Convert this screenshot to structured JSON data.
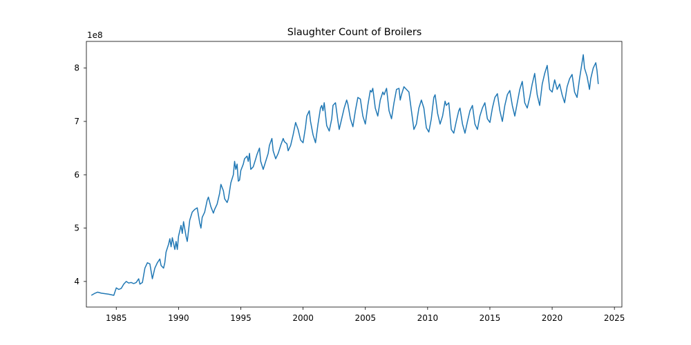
{
  "chart_data": {
    "type": "line",
    "title": "Slaughter Count of Broilers",
    "xlabel": "",
    "ylabel": "",
    "y_offset_label": "1e8",
    "y_scale_factor": 100000000,
    "xlim": [
      1982.6,
      2025.6
    ],
    "ylim": [
      3.52,
      8.5
    ],
    "x_ticks": [
      1985,
      1990,
      1995,
      2000,
      2005,
      2010,
      2015,
      2020,
      2025
    ],
    "y_ticks": [
      4,
      5,
      6,
      7,
      8
    ],
    "grid": false,
    "legend": "none",
    "line_color": "#1f77b4",
    "series": [
      {
        "values": [
          [
            1983.0,
            3.74
          ],
          [
            1983.3,
            3.78
          ],
          [
            1983.5,
            3.8
          ],
          [
            1983.8,
            3.78
          ],
          [
            1984.4,
            3.76
          ],
          [
            1984.8,
            3.74
          ],
          [
            1985.0,
            3.88
          ],
          [
            1985.2,
            3.85
          ],
          [
            1985.4,
            3.87
          ],
          [
            1985.6,
            3.95
          ],
          [
            1985.8,
            4.0
          ],
          [
            1986.0,
            3.97
          ],
          [
            1986.2,
            3.98
          ],
          [
            1986.4,
            3.96
          ],
          [
            1986.6,
            3.98
          ],
          [
            1986.8,
            4.05
          ],
          [
            1986.9,
            3.95
          ],
          [
            1987.1,
            3.98
          ],
          [
            1987.3,
            4.25
          ],
          [
            1987.5,
            4.35
          ],
          [
            1987.7,
            4.33
          ],
          [
            1987.9,
            4.05
          ],
          [
            1988.1,
            4.25
          ],
          [
            1988.3,
            4.35
          ],
          [
            1988.5,
            4.42
          ],
          [
            1988.6,
            4.3
          ],
          [
            1988.8,
            4.25
          ],
          [
            1988.9,
            4.35
          ],
          [
            1989.0,
            4.55
          ],
          [
            1989.2,
            4.7
          ],
          [
            1989.3,
            4.8
          ],
          [
            1989.4,
            4.65
          ],
          [
            1989.5,
            4.82
          ],
          [
            1989.7,
            4.6
          ],
          [
            1989.8,
            4.75
          ],
          [
            1989.9,
            4.6
          ],
          [
            1990.0,
            4.85
          ],
          [
            1990.2,
            5.05
          ],
          [
            1990.3,
            4.9
          ],
          [
            1990.4,
            5.12
          ],
          [
            1990.6,
            4.85
          ],
          [
            1990.7,
            4.75
          ],
          [
            1990.9,
            5.15
          ],
          [
            1991.1,
            5.3
          ],
          [
            1991.3,
            5.35
          ],
          [
            1991.5,
            5.38
          ],
          [
            1991.7,
            5.1
          ],
          [
            1991.8,
            5.0
          ],
          [
            1991.9,
            5.2
          ],
          [
            1992.1,
            5.3
          ],
          [
            1992.3,
            5.52
          ],
          [
            1992.4,
            5.58
          ],
          [
            1992.6,
            5.4
          ],
          [
            1992.8,
            5.28
          ],
          [
            1992.9,
            5.35
          ],
          [
            1993.1,
            5.45
          ],
          [
            1993.3,
            5.65
          ],
          [
            1993.4,
            5.82
          ],
          [
            1993.6,
            5.7
          ],
          [
            1993.7,
            5.55
          ],
          [
            1993.9,
            5.48
          ],
          [
            1994.0,
            5.55
          ],
          [
            1994.2,
            5.85
          ],
          [
            1994.4,
            6.0
          ],
          [
            1994.5,
            6.25
          ],
          [
            1994.6,
            6.1
          ],
          [
            1994.7,
            6.2
          ],
          [
            1994.8,
            5.88
          ],
          [
            1994.9,
            5.9
          ],
          [
            1995.0,
            6.08
          ],
          [
            1995.2,
            6.2
          ],
          [
            1995.3,
            6.3
          ],
          [
            1995.5,
            6.35
          ],
          [
            1995.6,
            6.25
          ],
          [
            1995.7,
            6.4
          ],
          [
            1995.8,
            6.1
          ],
          [
            1996.0,
            6.15
          ],
          [
            1996.2,
            6.3
          ],
          [
            1996.3,
            6.38
          ],
          [
            1996.5,
            6.5
          ],
          [
            1996.6,
            6.25
          ],
          [
            1996.8,
            6.1
          ],
          [
            1997.0,
            6.25
          ],
          [
            1997.2,
            6.4
          ],
          [
            1997.3,
            6.55
          ],
          [
            1997.5,
            6.68
          ],
          [
            1997.6,
            6.45
          ],
          [
            1997.8,
            6.3
          ],
          [
            1998.0,
            6.4
          ],
          [
            1998.2,
            6.55
          ],
          [
            1998.4,
            6.68
          ],
          [
            1998.5,
            6.62
          ],
          [
            1998.7,
            6.58
          ],
          [
            1998.8,
            6.45
          ],
          [
            1999.0,
            6.55
          ],
          [
            1999.2,
            6.75
          ],
          [
            1999.4,
            6.98
          ],
          [
            1999.6,
            6.85
          ],
          [
            1999.8,
            6.65
          ],
          [
            2000.0,
            6.6
          ],
          [
            2000.2,
            6.9
          ],
          [
            2000.3,
            7.1
          ],
          [
            2000.5,
            7.2
          ],
          [
            2000.6,
            7.0
          ],
          [
            2000.8,
            6.75
          ],
          [
            2001.0,
            6.6
          ],
          [
            2001.2,
            6.95
          ],
          [
            2001.4,
            7.25
          ],
          [
            2001.5,
            7.3
          ],
          [
            2001.6,
            7.2
          ],
          [
            2001.7,
            7.35
          ],
          [
            2001.9,
            6.92
          ],
          [
            2002.1,
            6.82
          ],
          [
            2002.3,
            7.05
          ],
          [
            2002.4,
            7.3
          ],
          [
            2002.6,
            7.35
          ],
          [
            2002.8,
            7.0
          ],
          [
            2002.9,
            6.85
          ],
          [
            2003.1,
            7.05
          ],
          [
            2003.3,
            7.25
          ],
          [
            2003.5,
            7.4
          ],
          [
            2003.6,
            7.32
          ],
          [
            2003.8,
            7.05
          ],
          [
            2004.0,
            6.9
          ],
          [
            2004.2,
            7.2
          ],
          [
            2004.4,
            7.45
          ],
          [
            2004.6,
            7.42
          ],
          [
            2004.8,
            7.1
          ],
          [
            2005.0,
            6.95
          ],
          [
            2005.2,
            7.3
          ],
          [
            2005.4,
            7.58
          ],
          [
            2005.5,
            7.55
          ],
          [
            2005.6,
            7.62
          ],
          [
            2005.8,
            7.25
          ],
          [
            2006.0,
            7.1
          ],
          [
            2006.2,
            7.4
          ],
          [
            2006.4,
            7.55
          ],
          [
            2006.5,
            7.5
          ],
          [
            2006.7,
            7.62
          ],
          [
            2006.9,
            7.2
          ],
          [
            2007.1,
            7.05
          ],
          [
            2007.3,
            7.35
          ],
          [
            2007.5,
            7.6
          ],
          [
            2007.7,
            7.62
          ],
          [
            2007.8,
            7.4
          ],
          [
            2007.9,
            7.5
          ],
          [
            2008.1,
            7.65
          ],
          [
            2008.3,
            7.6
          ],
          [
            2008.5,
            7.55
          ],
          [
            2008.7,
            7.2
          ],
          [
            2008.9,
            6.85
          ],
          [
            2009.1,
            6.95
          ],
          [
            2009.3,
            7.25
          ],
          [
            2009.5,
            7.4
          ],
          [
            2009.7,
            7.25
          ],
          [
            2009.9,
            6.88
          ],
          [
            2010.1,
            6.8
          ],
          [
            2010.3,
            7.05
          ],
          [
            2010.5,
            7.45
          ],
          [
            2010.6,
            7.5
          ],
          [
            2010.8,
            7.15
          ],
          [
            2011.0,
            6.95
          ],
          [
            2011.2,
            7.1
          ],
          [
            2011.4,
            7.38
          ],
          [
            2011.5,
            7.3
          ],
          [
            2011.7,
            7.35
          ],
          [
            2011.9,
            6.85
          ],
          [
            2012.1,
            6.78
          ],
          [
            2012.3,
            7.0
          ],
          [
            2012.5,
            7.2
          ],
          [
            2012.6,
            7.25
          ],
          [
            2012.8,
            6.95
          ],
          [
            2013.0,
            6.78
          ],
          [
            2013.2,
            7.0
          ],
          [
            2013.4,
            7.2
          ],
          [
            2013.6,
            7.3
          ],
          [
            2013.8,
            6.95
          ],
          [
            2014.0,
            6.85
          ],
          [
            2014.2,
            7.1
          ],
          [
            2014.4,
            7.25
          ],
          [
            2014.6,
            7.35
          ],
          [
            2014.8,
            7.05
          ],
          [
            2015.0,
            6.98
          ],
          [
            2015.2,
            7.25
          ],
          [
            2015.4,
            7.45
          ],
          [
            2015.6,
            7.52
          ],
          [
            2015.8,
            7.2
          ],
          [
            2016.0,
            7.0
          ],
          [
            2016.2,
            7.3
          ],
          [
            2016.4,
            7.5
          ],
          [
            2016.6,
            7.58
          ],
          [
            2016.8,
            7.3
          ],
          [
            2017.0,
            7.1
          ],
          [
            2017.2,
            7.35
          ],
          [
            2017.4,
            7.6
          ],
          [
            2017.6,
            7.75
          ],
          [
            2017.8,
            7.35
          ],
          [
            2018.0,
            7.25
          ],
          [
            2018.2,
            7.45
          ],
          [
            2018.4,
            7.7
          ],
          [
            2018.6,
            7.9
          ],
          [
            2018.8,
            7.5
          ],
          [
            2019.0,
            7.3
          ],
          [
            2019.2,
            7.7
          ],
          [
            2019.4,
            7.9
          ],
          [
            2019.6,
            8.05
          ],
          [
            2019.8,
            7.6
          ],
          [
            2020.0,
            7.55
          ],
          [
            2020.2,
            7.78
          ],
          [
            2020.4,
            7.6
          ],
          [
            2020.6,
            7.7
          ],
          [
            2020.8,
            7.5
          ],
          [
            2021.0,
            7.35
          ],
          [
            2021.2,
            7.65
          ],
          [
            2021.4,
            7.8
          ],
          [
            2021.6,
            7.88
          ],
          [
            2021.8,
            7.55
          ],
          [
            2022.0,
            7.45
          ],
          [
            2022.2,
            7.8
          ],
          [
            2022.4,
            8.1
          ],
          [
            2022.5,
            8.25
          ],
          [
            2022.6,
            8.0
          ],
          [
            2022.8,
            7.85
          ],
          [
            2023.0,
            7.6
          ],
          [
            2023.1,
            7.8
          ],
          [
            2023.3,
            8.0
          ],
          [
            2023.5,
            8.1
          ],
          [
            2023.6,
            7.95
          ],
          [
            2023.7,
            7.7
          ]
        ]
      }
    ]
  }
}
